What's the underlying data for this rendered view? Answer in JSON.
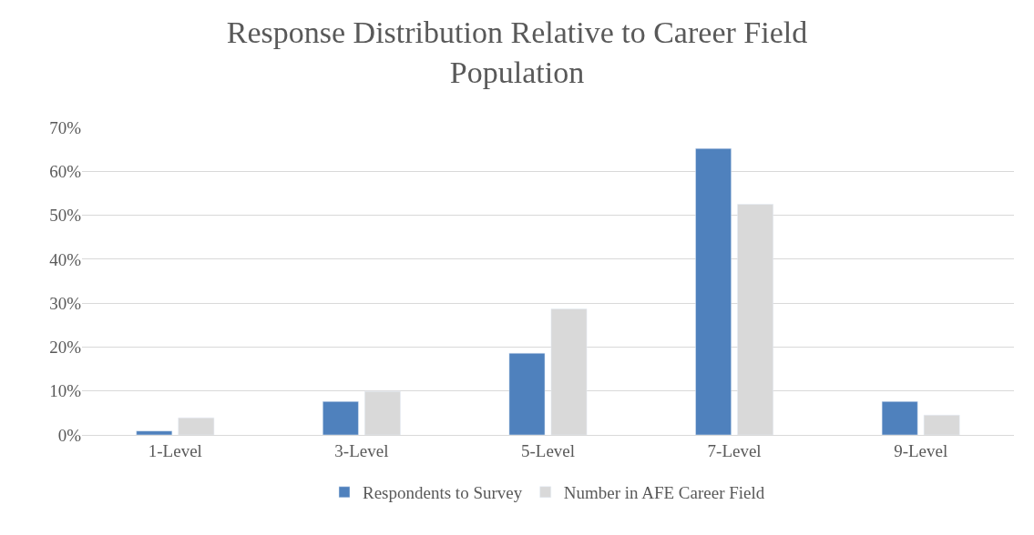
{
  "chart_data": {
    "type": "bar",
    "title": "Response Distribution Relative to Career Field\nPopulation",
    "categories": [
      "1-Level",
      "3-Level",
      "5-Level",
      "7-Level",
      "9-Level"
    ],
    "series": [
      {
        "name": "Respondents to Survey",
        "color": "#4f81bd",
        "values": [
          0.9,
          7.6,
          18.6,
          65.2,
          7.6
        ]
      },
      {
        "name": "Number in AFE Career Field",
        "color": "#d9d9d9",
        "values": [
          3.9,
          9.9,
          28.7,
          52.5,
          4.5
        ]
      }
    ],
    "ylim": [
      0,
      70
    ],
    "yticks": [
      {
        "value": 0,
        "label": "0%"
      },
      {
        "value": 10,
        "label": "10%"
      },
      {
        "value": 20,
        "label": "20%"
      },
      {
        "value": 30,
        "label": "30%"
      },
      {
        "value": 40,
        "label": "40%"
      },
      {
        "value": 50,
        "label": "50%"
      },
      {
        "value": 60,
        "label": "60%"
      },
      {
        "value": 70,
        "label": "70%"
      }
    ],
    "grid": "y",
    "legend": "bottom"
  }
}
